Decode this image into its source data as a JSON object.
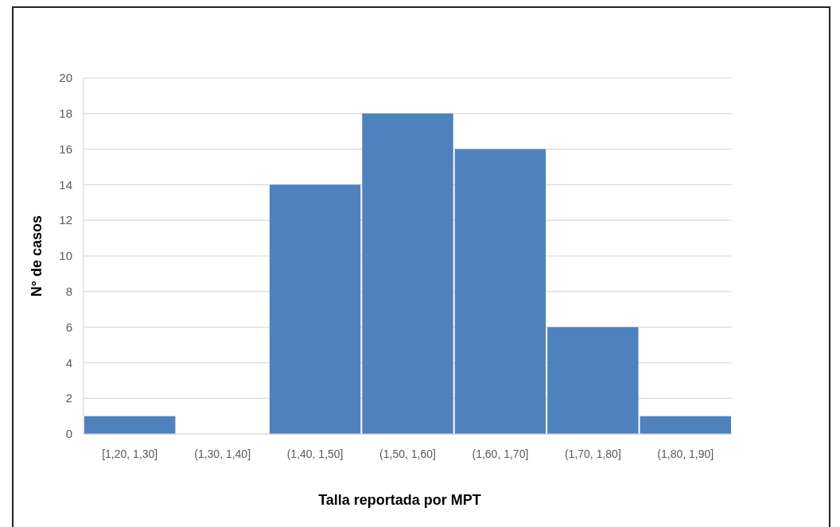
{
  "chart_data": {
    "type": "bar",
    "xlabel": "Talla reportada por MPT",
    "ylabel": "N° de casos",
    "categories": [
      "[1,20, 1,30]",
      "(1,30, 1,40]",
      "(1,40, 1,50]",
      "(1,50, 1,60]",
      "(1,60, 1,70]",
      "(1,70, 1,80]",
      "(1,80, 1,90]"
    ],
    "values": [
      1,
      0,
      14,
      18,
      16,
      6,
      1
    ],
    "color": "#4f81bd",
    "ylim": [
      0,
      20
    ],
    "yticks": [
      0,
      2,
      4,
      6,
      8,
      10,
      12,
      14,
      16,
      18,
      20
    ],
    "grid": "y"
  }
}
